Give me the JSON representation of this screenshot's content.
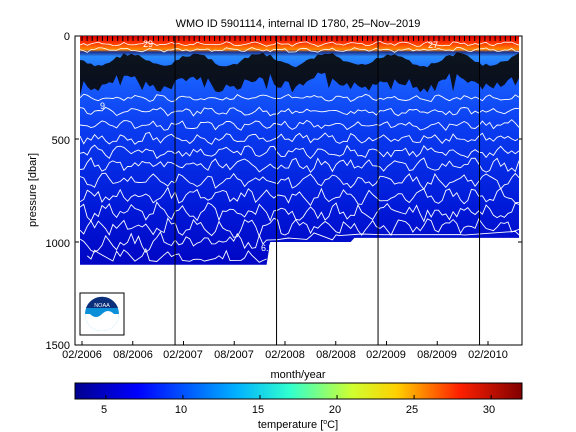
{
  "chart_data": {
    "type": "heatmap",
    "title": "WMO ID 5901114, internal ID 1780, 25–Nov–2019",
    "xlabel": "month/year",
    "ylabel": "pressure [dbar]",
    "x_ticks": [
      "02/2006",
      "08/2006",
      "02/2007",
      "08/2007",
      "02/2008",
      "08/2008",
      "02/2009",
      "08/2009",
      "02/2010"
    ],
    "y_ticks": [
      "0",
      "500",
      "1000",
      "1500"
    ],
    "ylim": [
      1500,
      0
    ],
    "year_boundaries": [
      "01/2007",
      "01/2008",
      "01/2009",
      "01/2010"
    ],
    "colorbar": {
      "label_prefix": "temperature [",
      "label_unit": "C]",
      "label_degree": "o",
      "ticks": [
        "5",
        "10",
        "15",
        "20",
        "25",
        "30"
      ],
      "range": [
        3,
        32
      ]
    },
    "contour_labels": [
      "29",
      "27",
      "9",
      "6.5",
      "6"
    ],
    "mixed_layer_temperature": 29,
    "thermocline_depth_dbar": 100,
    "deep_temperature_1000dbar": 6,
    "profile_max_pressure": [
      {
        "period": "02/2006–08/2007",
        "pressure": 1110
      },
      {
        "period": "08/2007–10/2007",
        "pressure": 1000
      },
      {
        "period": "10/2007–10/2010",
        "pressure": 980
      }
    ]
  },
  "logo": {
    "name": "NOAA",
    "text": "NOAA"
  }
}
